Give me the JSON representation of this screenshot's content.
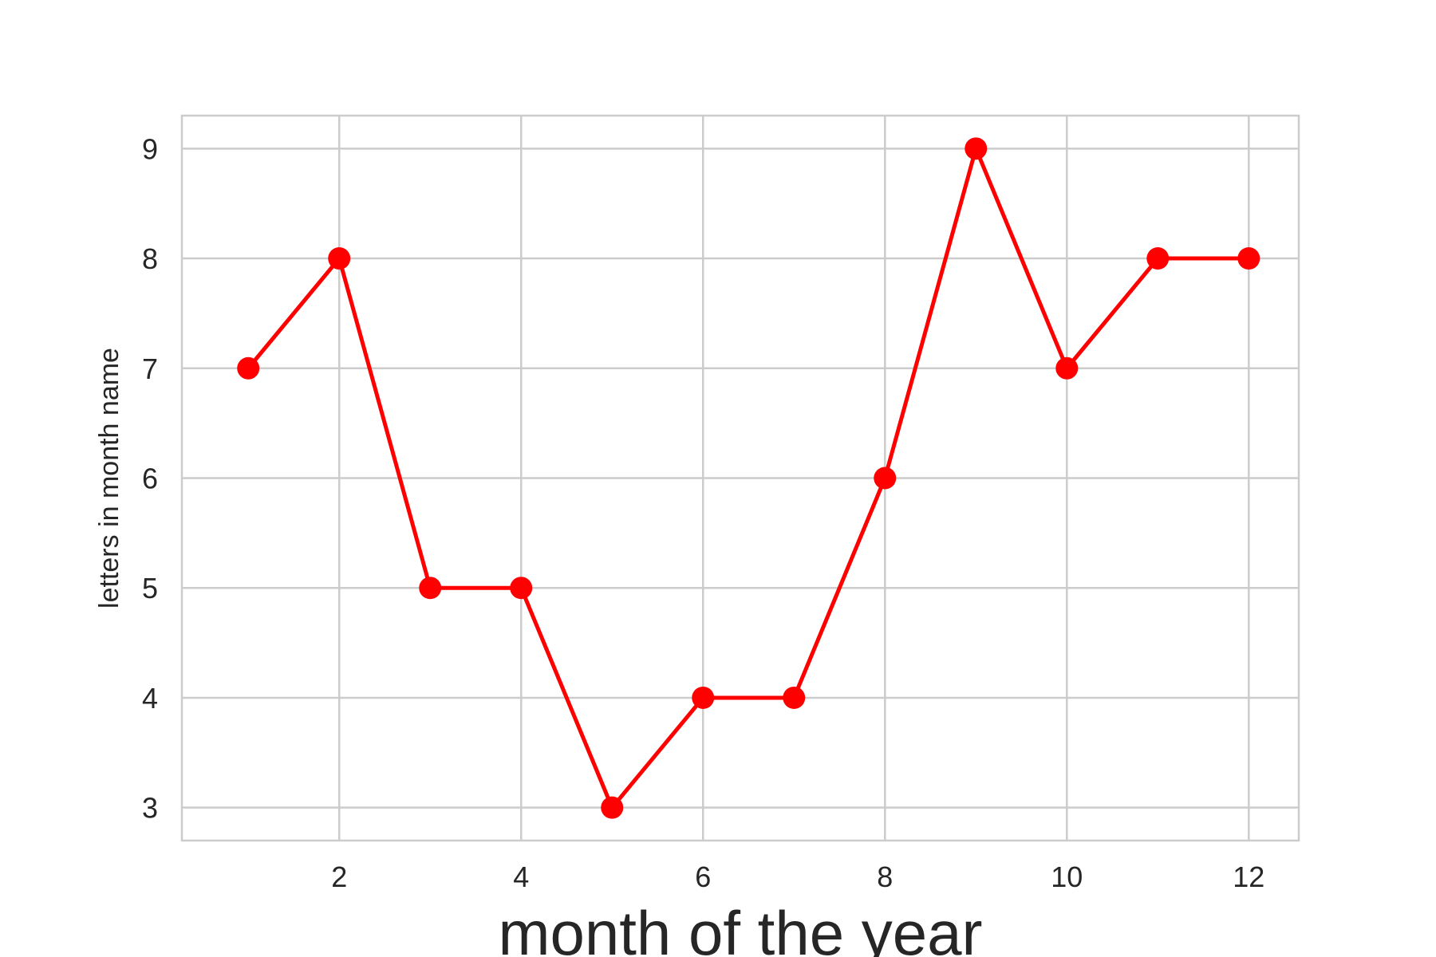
{
  "chart_data": {
    "type": "line",
    "title": "",
    "xlabel": "month of the year",
    "ylabel": "letters in month name",
    "x": [
      1,
      2,
      3,
      4,
      5,
      6,
      7,
      8,
      9,
      10,
      11,
      12
    ],
    "series": [
      {
        "values": [
          7,
          8,
          5,
          5,
          3,
          4,
          4,
          6,
          9,
          7,
          8,
          8
        ]
      }
    ],
    "xlim": [
      0.27,
      12.55
    ],
    "ylim": [
      2.7,
      9.3
    ],
    "xticks": [
      2,
      4,
      6,
      8,
      10,
      12
    ],
    "yticks": [
      3,
      4,
      5,
      6,
      7,
      8,
      9
    ],
    "grid": true,
    "legend": "none",
    "line_color": "#ff0000",
    "marker": "circle",
    "grid_color": "#cccccc",
    "frame_color": "#cccccc",
    "text_color": "#262626"
  }
}
